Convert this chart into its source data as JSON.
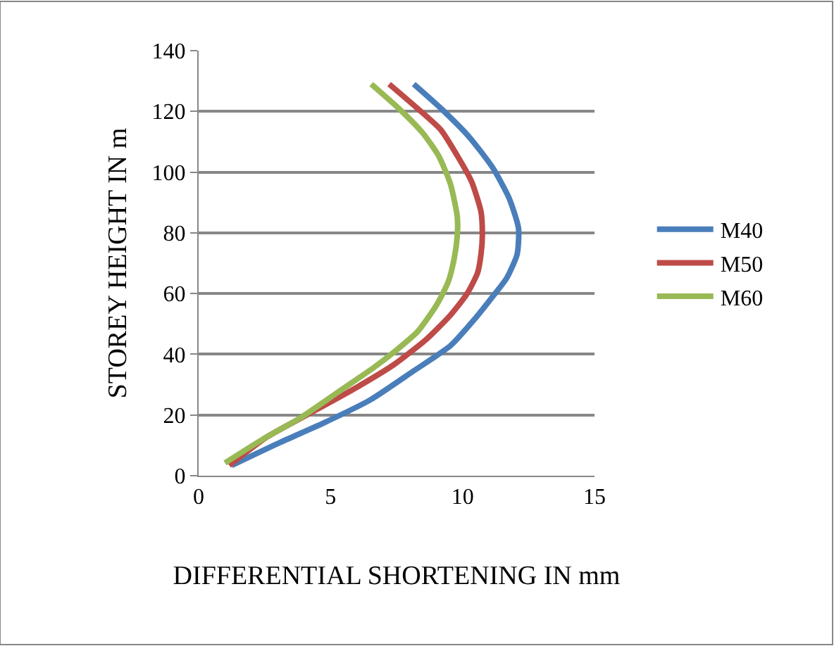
{
  "chart_data": {
    "type": "line",
    "xlabel": "DIFFERENTIAL SHORTENING IN mm",
    "ylabel": "STOREY HEIGHT IN m",
    "xlim": [
      0,
      15
    ],
    "xticks": [
      0,
      5,
      10,
      15
    ],
    "ylim": [
      0,
      140
    ],
    "yticks": [
      0,
      20,
      40,
      60,
      80,
      100,
      120,
      140
    ],
    "grid": "y",
    "legend": "right",
    "marker": "none",
    "line_style": "solid",
    "series": [
      {
        "name": "M40",
        "color": "#4a7ebb",
        "x": [
          8.15,
          9.18,
          10.25,
          11.14,
          11.76,
          12.12,
          12.07,
          11.68,
          11.14,
          10.43,
          9.54,
          8.11,
          6.51,
          4.72,
          3.12,
          1.25
        ],
        "values": [
          129,
          121,
          111.6,
          101.5,
          91.5,
          81.5,
          73,
          65.2,
          59,
          51.3,
          42.8,
          34.3,
          25,
          17.3,
          11.1,
          3.4
        ]
      },
      {
        "name": "M50",
        "color": "#be4b48",
        "x": [
          7.22,
          8.29,
          9.18,
          9.8,
          10.34,
          10.7,
          10.75,
          10.7,
          10.57,
          10.16,
          9.54,
          8.65,
          7.4,
          5.79,
          4.01,
          2.58,
          1.16
        ],
        "values": [
          129,
          121,
          113.9,
          105.4,
          96.9,
          86.9,
          79.1,
          73,
          66.8,
          59.8,
          52.9,
          45.1,
          36.6,
          28.1,
          19.6,
          12.7,
          3.4
        ]
      },
      {
        "name": "M60",
        "color": "#98b954",
        "x": [
          6.54,
          7.58,
          8.47,
          9.09,
          9.54,
          9.8,
          9.8,
          9.68,
          9.45,
          9.0,
          8.29,
          7.58,
          6.68,
          5.26,
          3.83,
          2.41,
          1.0
        ],
        "values": [
          129,
          121,
          113.1,
          105.4,
          96.1,
          85.3,
          79.1,
          71.4,
          63.7,
          56,
          47.4,
          42,
          35.9,
          27.4,
          18.9,
          11.9,
          4.2
        ]
      }
    ]
  }
}
